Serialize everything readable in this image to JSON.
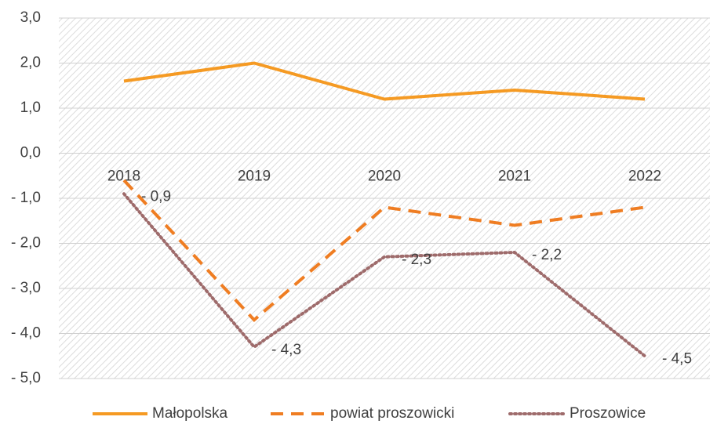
{
  "chart_data": {
    "type": "line",
    "categories": [
      "2018",
      "2019",
      "2020",
      "2021",
      "2022"
    ],
    "series": [
      {
        "name": "Małopolska",
        "color": "#f59a23",
        "dash": "solid",
        "values": [
          1.6,
          2.0,
          1.2,
          1.4,
          1.2
        ]
      },
      {
        "name": "powiat proszowicki",
        "color": "#ef7d22",
        "dash": "dashed",
        "values": [
          -0.6,
          -3.7,
          -1.2,
          -1.6,
          -1.2
        ]
      },
      {
        "name": "Proszowice",
        "color": "#9e6b6b",
        "dash": "dotted",
        "values": [
          -0.9,
          -4.3,
          -2.3,
          -2.2,
          -4.5
        ],
        "value_labels": [
          "- 0,9",
          "- 4,3",
          "- 2,3",
          "- 2,2",
          "- 4,5"
        ]
      }
    ],
    "ylim": [
      -5,
      3
    ],
    "yticks": [
      {
        "value": -5,
        "label": "- 5,0"
      },
      {
        "value": -4,
        "label": "- 4,0"
      },
      {
        "value": -3,
        "label": "- 3,0"
      },
      {
        "value": -2,
        "label": "- 2,0"
      },
      {
        "value": -1,
        "label": "- 1,0"
      },
      {
        "value": 0,
        "label": "0,0"
      },
      {
        "value": 1,
        "label": "1,0"
      },
      {
        "value": 2,
        "label": "2,0"
      },
      {
        "value": 3,
        "label": "3,0"
      }
    ],
    "grid": true,
    "legend": "bottom"
  }
}
